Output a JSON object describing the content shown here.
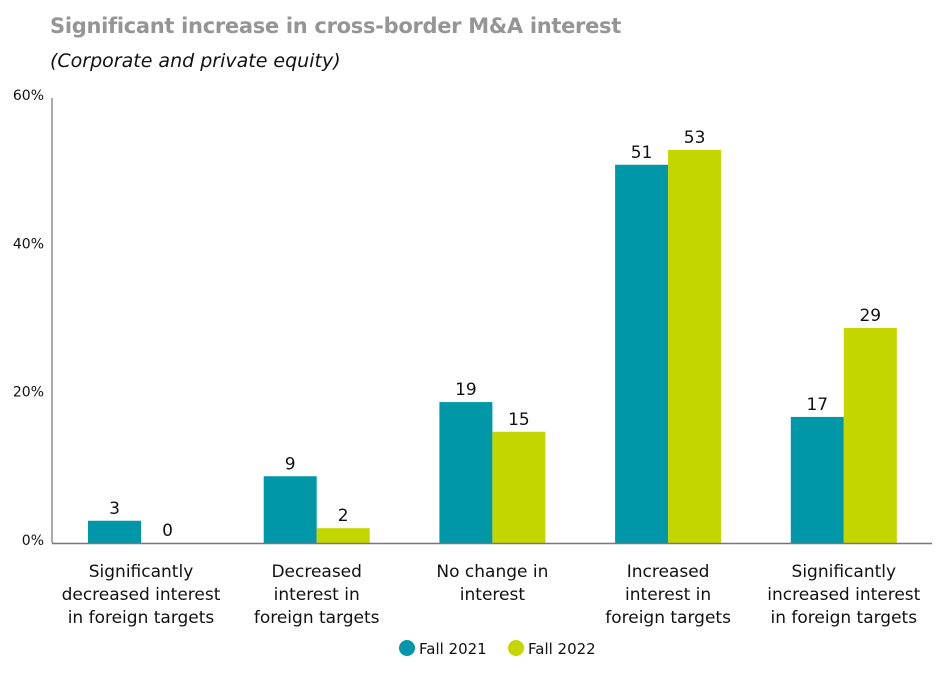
{
  "chart_data": {
    "type": "bar",
    "title": "Significant increase in cross-border M&A interest",
    "subtitle": "(Corporate and private equity)",
    "categories": [
      [
        "Significantly",
        "decreased interest",
        "in foreign targets"
      ],
      [
        "Decreased",
        "interest in",
        "foreign targets"
      ],
      [
        "No change in",
        "interest"
      ],
      [
        "Increased",
        "interest in",
        "foreign targets"
      ],
      [
        "Significantly",
        "increased interest",
        "in foreign targets"
      ]
    ],
    "series": [
      {
        "name": "Fall 2021",
        "color": "#0097A9",
        "values": [
          3,
          9,
          19,
          51,
          17
        ]
      },
      {
        "name": "Fall 2022",
        "color": "#C4D600",
        "values": [
          0,
          2,
          15,
          53,
          29
        ]
      }
    ],
    "yticks": [
      "0%",
      "20%",
      "40%",
      "60%"
    ],
    "ytick_values": [
      0,
      20,
      40,
      60
    ],
    "ylim": [
      0,
      60
    ],
    "grid": false,
    "legend": "bottom-center"
  }
}
